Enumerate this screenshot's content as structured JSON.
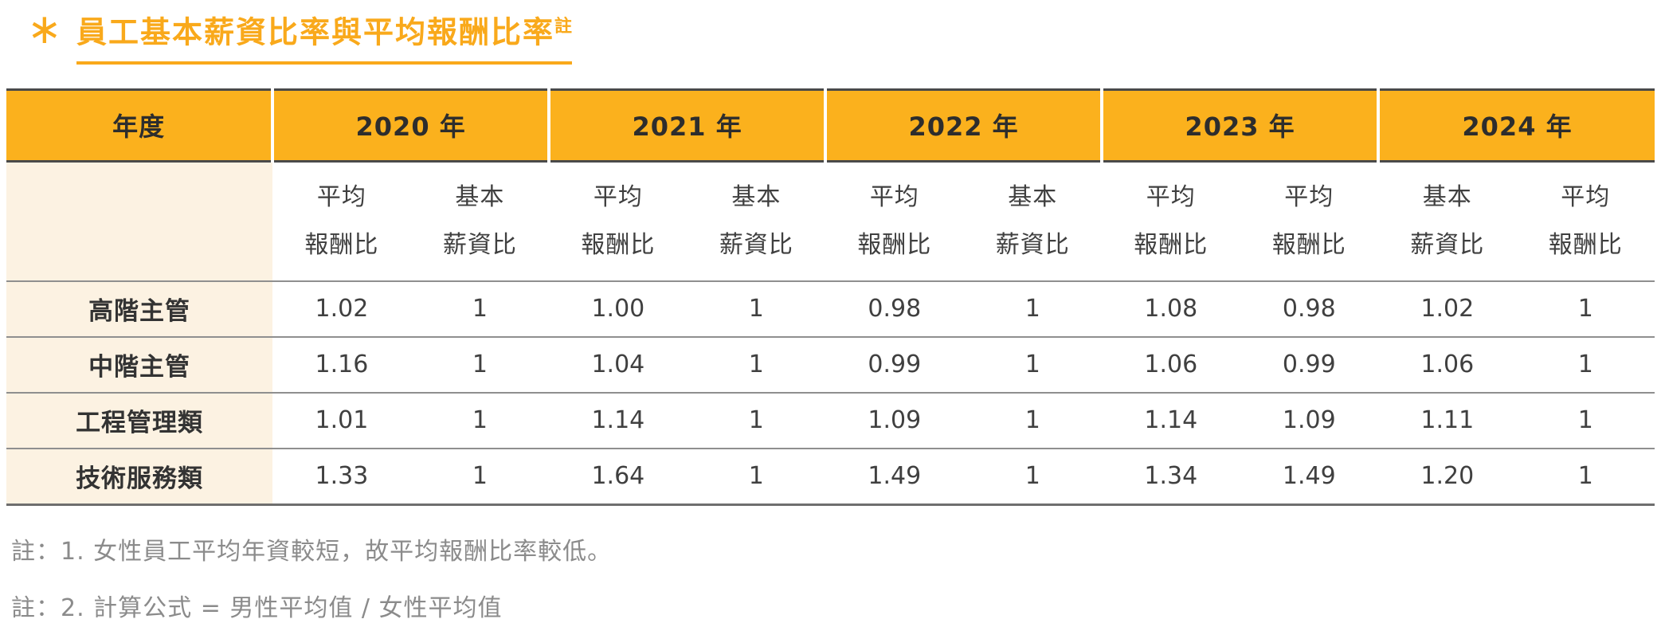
{
  "title": {
    "marker": "∗",
    "text": "員工基本薪資比率與平均報酬比率",
    "superscript": "註"
  },
  "colors": {
    "accent_orange": "#F9A91B",
    "header_background": "#FBB11D",
    "label_column_background": "#FCF2E2",
    "note_gray": "#8B8B8B"
  },
  "table": {
    "corner_label": "年度",
    "year_groups": [
      {
        "label": "2020 年"
      },
      {
        "label": "2021 年"
      },
      {
        "label": "2022 年"
      },
      {
        "label": "2023 年"
      },
      {
        "label": "2024 年"
      }
    ],
    "sub_headers": [
      {
        "line1": "平均",
        "line2": "報酬比"
      },
      {
        "line1": "基本",
        "line2": "薪資比"
      },
      {
        "line1": "平均",
        "line2": "報酬比"
      },
      {
        "line1": "基本",
        "line2": "薪資比"
      },
      {
        "line1": "平均",
        "line2": "報酬比"
      },
      {
        "line1": "基本",
        "line2": "薪資比"
      },
      {
        "line1": "平均",
        "line2": "報酬比"
      },
      {
        "line1": "平均",
        "line2": "報酬比"
      },
      {
        "line1": "基本",
        "line2": "薪資比"
      },
      {
        "line1": "平均",
        "line2": "報酬比"
      }
    ],
    "rows": [
      {
        "label": "高階主管",
        "values": [
          "1.02",
          "1",
          "1.00",
          "1",
          "0.98",
          "1",
          "1.08",
          "0.98",
          "1.02",
          "1"
        ]
      },
      {
        "label": "中階主管",
        "values": [
          "1.16",
          "1",
          "1.04",
          "1",
          "0.99",
          "1",
          "1.06",
          "0.99",
          "1.06",
          "1"
        ]
      },
      {
        "label": "工程管理類",
        "values": [
          "1.01",
          "1",
          "1.14",
          "1",
          "1.09",
          "1",
          "1.14",
          "1.09",
          "1.11",
          "1"
        ]
      },
      {
        "label": "技術服務類",
        "values": [
          "1.33",
          "1",
          "1.64",
          "1",
          "1.49",
          "1",
          "1.34",
          "1.49",
          "1.20",
          "1"
        ]
      }
    ]
  },
  "notes": [
    "註：1. 女性員工平均年資較短，故平均報酬比率較低。",
    "註：2. 計算公式 = 男性平均值 / 女性平均值"
  ]
}
